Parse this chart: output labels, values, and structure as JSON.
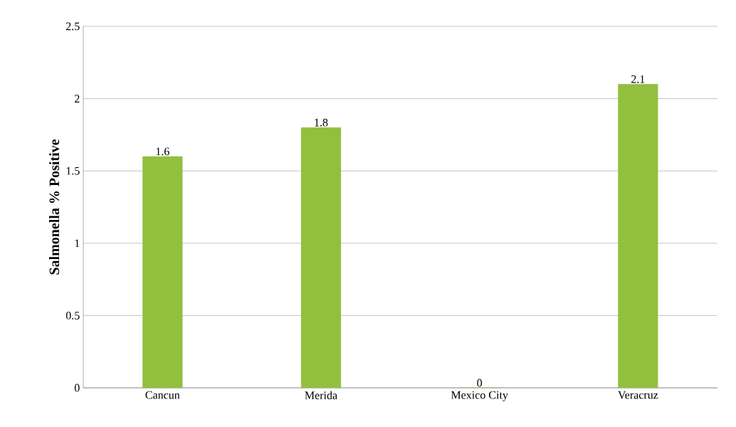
{
  "chart_data": {
    "type": "bar",
    "ylabel": "Salmonella %  Positive",
    "categories": [
      "Cancun",
      "Merida",
      "Mexico City",
      "Veracruz"
    ],
    "values": [
      1.6,
      1.8,
      0,
      2.1
    ],
    "color": "#92bf3e",
    "ylim": [
      0,
      2.5
    ],
    "yticks": [
      0,
      0.5,
      1,
      1.5,
      2,
      2.5
    ],
    "grid": "y",
    "data_labels": true
  }
}
